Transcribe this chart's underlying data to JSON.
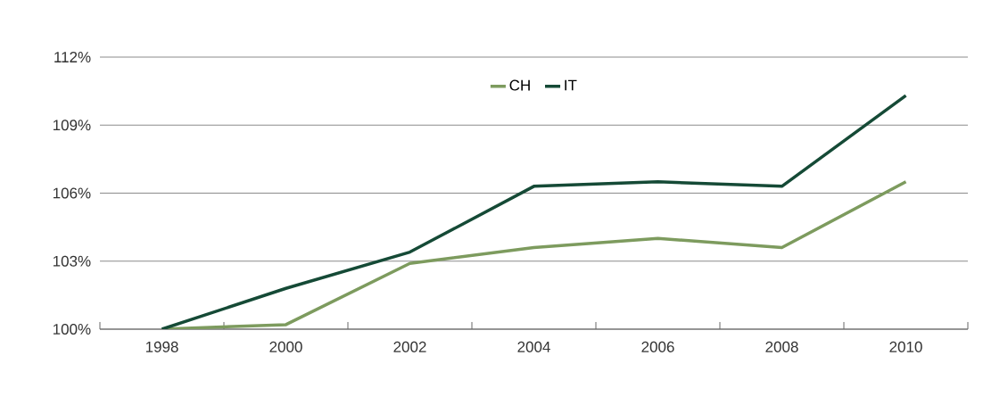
{
  "chart_data": {
    "type": "line",
    "categories": [
      "1998",
      "2000",
      "2002",
      "2004",
      "2006",
      "2008",
      "2010"
    ],
    "series": [
      {
        "name": "CH",
        "color": "#7d9b5e",
        "values": [
          100.0,
          100.2,
          102.9,
          103.6,
          104.0,
          103.6,
          106.5
        ]
      },
      {
        "name": "IT",
        "color": "#154a36",
        "values": [
          100.0,
          101.8,
          103.4,
          106.3,
          106.5,
          106.3,
          110.3
        ]
      }
    ],
    "ylim": [
      100,
      112
    ],
    "yticks": [
      {
        "value": 100,
        "label": "100%"
      },
      {
        "value": 103,
        "label": "103%"
      },
      {
        "value": 106,
        "label": "106%"
      },
      {
        "value": 109,
        "label": "109%"
      },
      {
        "value": 112,
        "label": "112%"
      }
    ],
    "grid": "y",
    "legend": "top",
    "marker": "none",
    "line_style": "solid"
  }
}
